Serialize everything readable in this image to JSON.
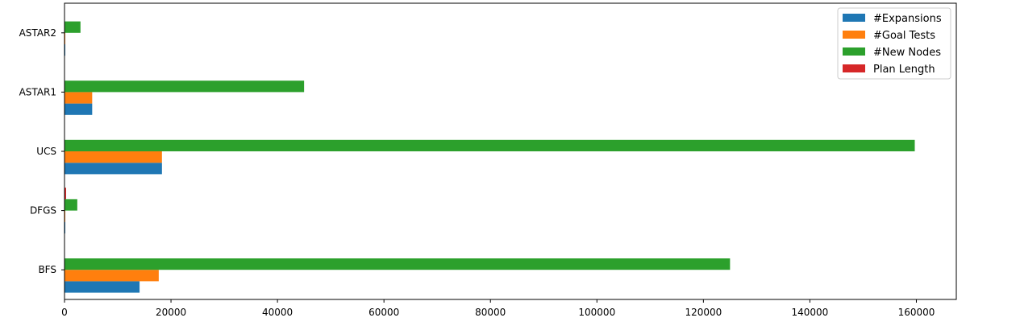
{
  "chart_data": {
    "type": "bar",
    "orientation": "horizontal",
    "categories": [
      "BFS",
      "DFGS",
      "UCS",
      "ASTAR1",
      "ASTAR2"
    ],
    "series": [
      {
        "name": "#Expansions",
        "color": "#1f77b4",
        "values": [
          14100,
          150,
          18300,
          5200,
          150
        ]
      },
      {
        "name": "#Goal Tests",
        "color": "#ff7f0e",
        "values": [
          17700,
          150,
          18300,
          5200,
          150
        ]
      },
      {
        "name": "#New Nodes",
        "color": "#2ca02c",
        "values": [
          125000,
          2400,
          159700,
          45000,
          3000
        ]
      },
      {
        "name": "Plan Length",
        "color": "#d62728",
        "values": [
          12,
          300,
          12,
          12,
          12
        ]
      }
    ],
    "xlim": [
      0,
      167500
    ],
    "xticks": [
      0,
      20000,
      40000,
      60000,
      80000,
      100000,
      120000,
      140000,
      160000
    ],
    "xtick_labels": [
      "0",
      "20000",
      "40000",
      "60000",
      "80000",
      "100000",
      "120000",
      "140000",
      "160000"
    ],
    "title": "",
    "xlabel": "",
    "ylabel": "",
    "legend": "top-right",
    "grid": false
  }
}
